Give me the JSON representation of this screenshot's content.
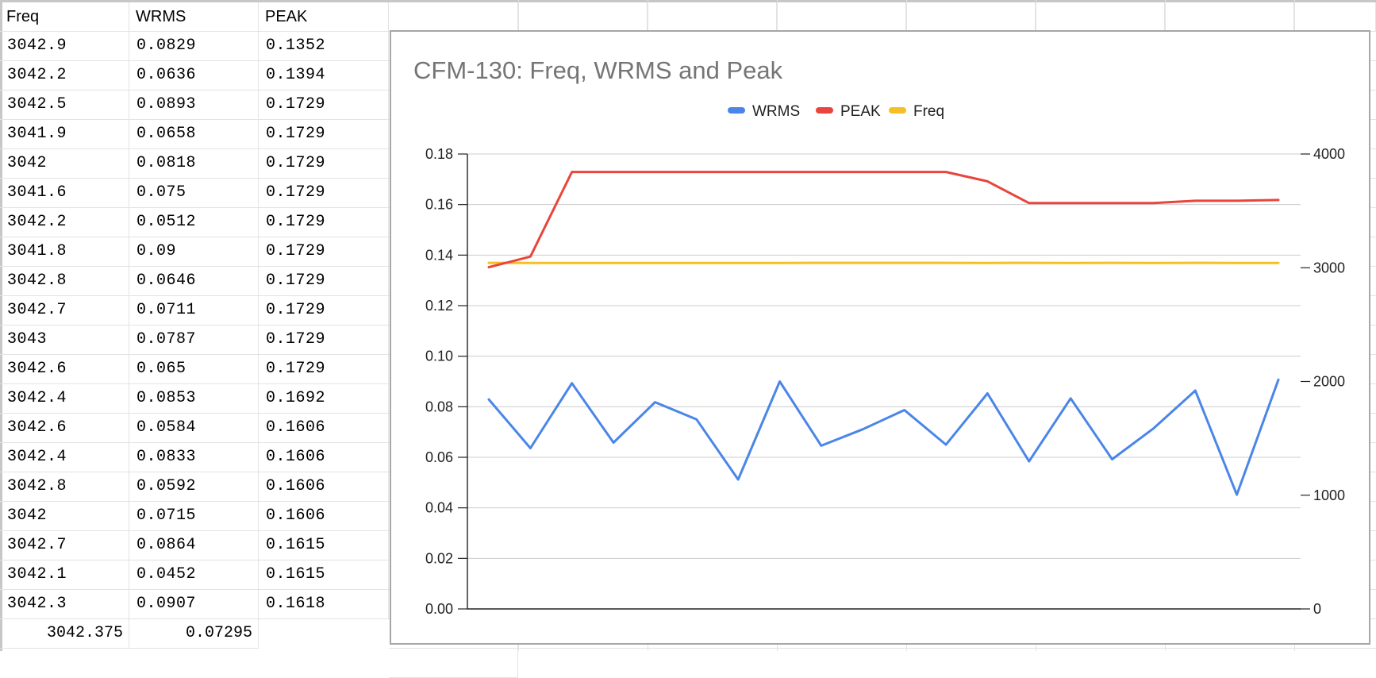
{
  "sheet": {
    "headers": [
      "Freq",
      "WRMS",
      "PEAK"
    ],
    "rows": [
      [
        "3042.9",
        "0.0829",
        "0.1352"
      ],
      [
        "3042.2",
        "0.0636",
        "0.1394"
      ],
      [
        "3042.5",
        "0.0893",
        "0.1729"
      ],
      [
        "3041.9",
        "0.0658",
        "0.1729"
      ],
      [
        "3042",
        "0.0818",
        "0.1729"
      ],
      [
        "3041.6",
        "0.075",
        "0.1729"
      ],
      [
        "3042.2",
        "0.0512",
        "0.1729"
      ],
      [
        "3041.8",
        "0.09",
        "0.1729"
      ],
      [
        "3042.8",
        "0.0646",
        "0.1729"
      ],
      [
        "3042.7",
        "0.0711",
        "0.1729"
      ],
      [
        "3043",
        "0.0787",
        "0.1729"
      ],
      [
        "3042.6",
        "0.065",
        "0.1729"
      ],
      [
        "3042.4",
        "0.0853",
        "0.1692"
      ],
      [
        "3042.6",
        "0.0584",
        "0.1606"
      ],
      [
        "3042.4",
        "0.0833",
        "0.1606"
      ],
      [
        "3042.8",
        "0.0592",
        "0.1606"
      ],
      [
        "3042",
        "0.0715",
        "0.1606"
      ],
      [
        "3042.7",
        "0.0864",
        "0.1615"
      ],
      [
        "3042.1",
        "0.0452",
        "0.1615"
      ],
      [
        "3042.3",
        "0.0907",
        "0.1618"
      ]
    ],
    "summary": [
      "3042.375",
      "0.07295"
    ]
  },
  "chart_data": {
    "type": "line",
    "title": "CFM-130: Freq, WRMS and Peak",
    "legend_position": "top",
    "grid": true,
    "x": [
      1,
      2,
      3,
      4,
      5,
      6,
      7,
      8,
      9,
      10,
      11,
      12,
      13,
      14,
      15,
      16,
      17,
      18,
      19,
      20
    ],
    "left_axis": {
      "ylim": [
        0,
        0.18
      ],
      "ticks": [
        "0.00",
        "0.02",
        "0.04",
        "0.06",
        "0.08",
        "0.10",
        "0.12",
        "0.14",
        "0.16",
        "0.18"
      ]
    },
    "right_axis": {
      "ylim": [
        0,
        4000
      ],
      "ticks": [
        "0",
        "1000",
        "2000",
        "3000",
        "4000"
      ]
    },
    "series": [
      {
        "name": "WRMS",
        "axis": "left",
        "color": "#4a86e8",
        "values": [
          0.0829,
          0.0636,
          0.0893,
          0.0658,
          0.0818,
          0.075,
          0.0512,
          0.09,
          0.0646,
          0.0711,
          0.0787,
          0.065,
          0.0853,
          0.0584,
          0.0833,
          0.0592,
          0.0715,
          0.0864,
          0.0452,
          0.0907
        ]
      },
      {
        "name": "PEAK",
        "axis": "left",
        "color": "#e8453c",
        "values": [
          0.1352,
          0.1394,
          0.1729,
          0.1729,
          0.1729,
          0.1729,
          0.1729,
          0.1729,
          0.1729,
          0.1729,
          0.1729,
          0.1729,
          0.1692,
          0.1606,
          0.1606,
          0.1606,
          0.1606,
          0.1615,
          0.1615,
          0.1618
        ]
      },
      {
        "name": "Freq",
        "axis": "right",
        "color": "#f6bf26",
        "values": [
          3042.9,
          3042.2,
          3042.5,
          3041.9,
          3042,
          3041.6,
          3042.2,
          3041.8,
          3042.8,
          3042.7,
          3043,
          3042.6,
          3042.4,
          3042.6,
          3042.4,
          3042.8,
          3042,
          3042.7,
          3042.1,
          3042.3
        ]
      }
    ]
  }
}
